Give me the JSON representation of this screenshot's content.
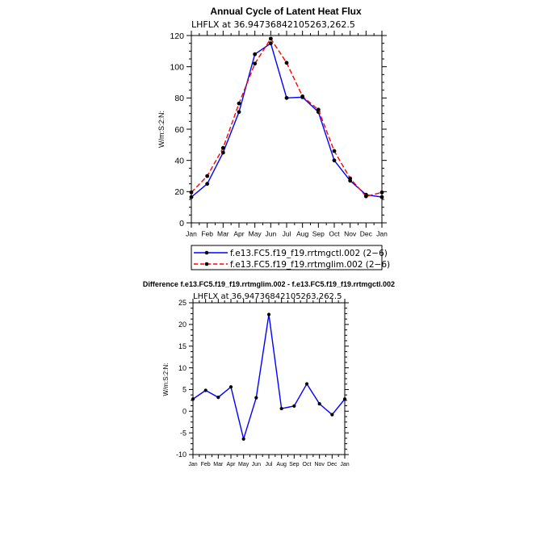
{
  "chart_data": [
    {
      "type": "line",
      "title": "Annual Cycle of Latent Heat Flux",
      "subtitle": "LHFLX at 36.94736842105263,262.5",
      "ylabel": "W/m:S:2:N:",
      "ylim": [
        0,
        120
      ],
      "yticks": [
        0,
        20,
        40,
        60,
        80,
        100,
        120
      ],
      "categories": [
        "Jan",
        "Feb",
        "Mar",
        "Apr",
        "May",
        "Jun",
        "Jul",
        "Aug",
        "Sep",
        "Oct",
        "Nov",
        "Dec",
        "Jan"
      ],
      "legend": "bottom",
      "series": [
        {
          "name": "f.e13.FC5.f19_f19.rrtmgctl.002 (2−6)",
          "color": "#0000ff",
          "dash": "solid",
          "values": [
            16.5,
            25,
            45,
            71,
            108,
            115,
            80,
            80.5,
            71,
            40,
            27,
            18,
            16.5
          ]
        },
        {
          "name": "f.e13.FC5.f19_f19.rrtmglim.002 (2−6)",
          "color": "#ff0000",
          "dash": "dashed",
          "values": [
            19.5,
            30,
            48,
            76.5,
            102,
            118,
            102.5,
            81,
            72.5,
            46,
            28.5,
            17,
            19.5
          ]
        }
      ]
    },
    {
      "type": "line",
      "title": "Difference f.e13.FC5.f19_f19.rrtmglim.002 - f.e13.FC5.f19_f19.rrtmgctl.002",
      "subtitle": "LHFLX at 36.94736842105263,262.5",
      "ylabel": "W/m:S:2:N:",
      "ylim": [
        -10,
        25
      ],
      "yticks": [
        -10,
        -5,
        0,
        5,
        10,
        15,
        20,
        25
      ],
      "categories": [
        "Jan",
        "Feb",
        "Mar",
        "Apr",
        "May",
        "Jun",
        "Jul",
        "Aug",
        "Sep",
        "Oct",
        "Nov",
        "Dec",
        "Jan"
      ],
      "series": [
        {
          "color": "#0000ff",
          "values": [
            2.8,
            4.8,
            3.2,
            5.6,
            -6.4,
            3.1,
            22.3,
            0.6,
            1.2,
            6.3,
            1.7,
            -0.8,
            2.8
          ]
        }
      ]
    }
  ]
}
